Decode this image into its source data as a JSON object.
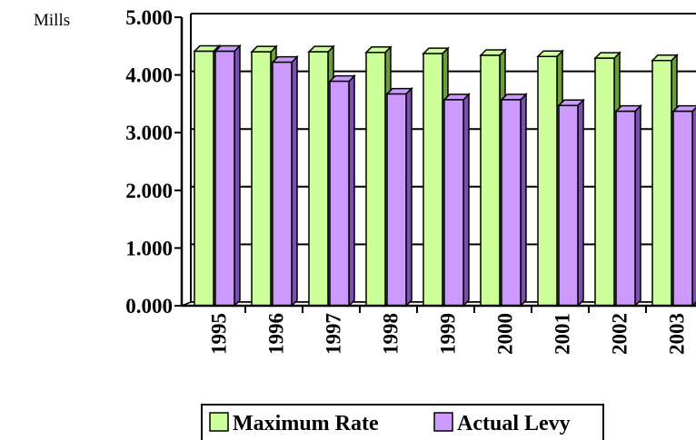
{
  "chart_data": {
    "type": "bar",
    "ylabel": "Mills",
    "xlabel": "",
    "ylim": [
      0,
      5
    ],
    "yticks": [
      "0.000",
      "1.000",
      "2.000",
      "3.000",
      "4.000",
      "5.000"
    ],
    "categories": [
      "1995",
      "1996",
      "1997",
      "1998",
      "1999",
      "2000",
      "2001",
      "2002",
      "2003"
    ],
    "series": [
      {
        "name": "Maximum Rate",
        "color": "#ccff99",
        "color_dark": "#6b9e3a",
        "values": [
          4.41,
          4.4,
          4.4,
          4.39,
          4.37,
          4.34,
          4.32,
          4.29,
          4.25
        ]
      },
      {
        "name": "Actual Levy",
        "color": "#cc99ff",
        "color_dark": "#7a4fb0",
        "values": [
          4.41,
          4.22,
          3.89,
          3.67,
          3.57,
          3.57,
          3.47,
          3.37,
          3.37
        ]
      }
    ],
    "grid": true,
    "legend": "bottom"
  }
}
